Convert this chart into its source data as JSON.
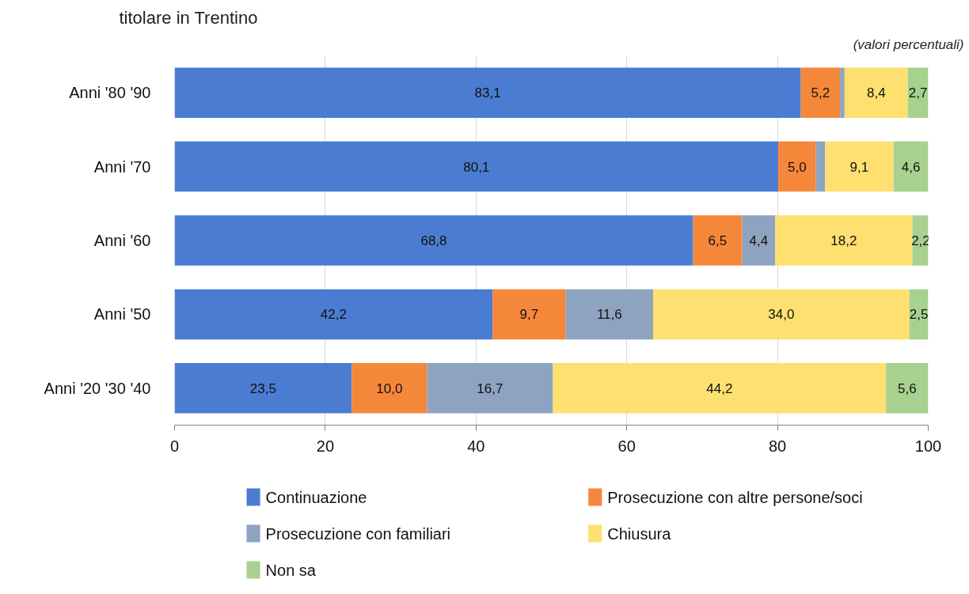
{
  "chart_data": {
    "type": "bar",
    "orientation": "horizontal",
    "stacked": true,
    "title": "titolare in Trentino",
    "annotations": [
      "(valori percentuali)"
    ],
    "categories": [
      "Anni '80 '90",
      "Anni '70",
      "Anni '60",
      "Anni '50",
      "Anni '20 '30 '40"
    ],
    "series": [
      {
        "name": "Continuazione",
        "color": "#4a7dd1",
        "values": [
          83.1,
          80.1,
          68.8,
          42.2,
          23.5
        ],
        "value_labels": [
          "83,1",
          "80,1",
          "68,8",
          "42,2",
          "23,5"
        ]
      },
      {
        "name": "Prosecuzione con altre persone/soci",
        "color": "#f5873b",
        "values": [
          5.2,
          5.0,
          6.5,
          9.7,
          10.0
        ],
        "value_labels": [
          "5,2",
          "5,0",
          "6,5",
          "9,7",
          "10,0"
        ]
      },
      {
        "name": "Prosecuzione con familiari",
        "color": "#8ea3c0",
        "values": [
          0.6,
          1.2,
          4.4,
          11.6,
          16.7
        ],
        "value_labels": [
          null,
          null,
          "4,4",
          "11,6",
          "16,7"
        ]
      },
      {
        "name": "Chiusura",
        "color": "#fde06f",
        "values": [
          8.4,
          9.1,
          18.2,
          34.0,
          44.2
        ],
        "value_labels": [
          "8,4",
          "9,1",
          "18,2",
          "34,0",
          "44,2"
        ]
      },
      {
        "name": "Non sa",
        "color": "#a6d18e",
        "values": [
          2.7,
          4.6,
          2.2,
          2.5,
          5.6
        ],
        "value_labels": [
          "2,7",
          "4,6",
          "2,2",
          "2,5",
          "5,6"
        ]
      }
    ],
    "xlim": [
      0,
      100
    ],
    "xticks": [
      0,
      20,
      40,
      60,
      80,
      100
    ],
    "grid": "x",
    "legend": "bottom"
  }
}
